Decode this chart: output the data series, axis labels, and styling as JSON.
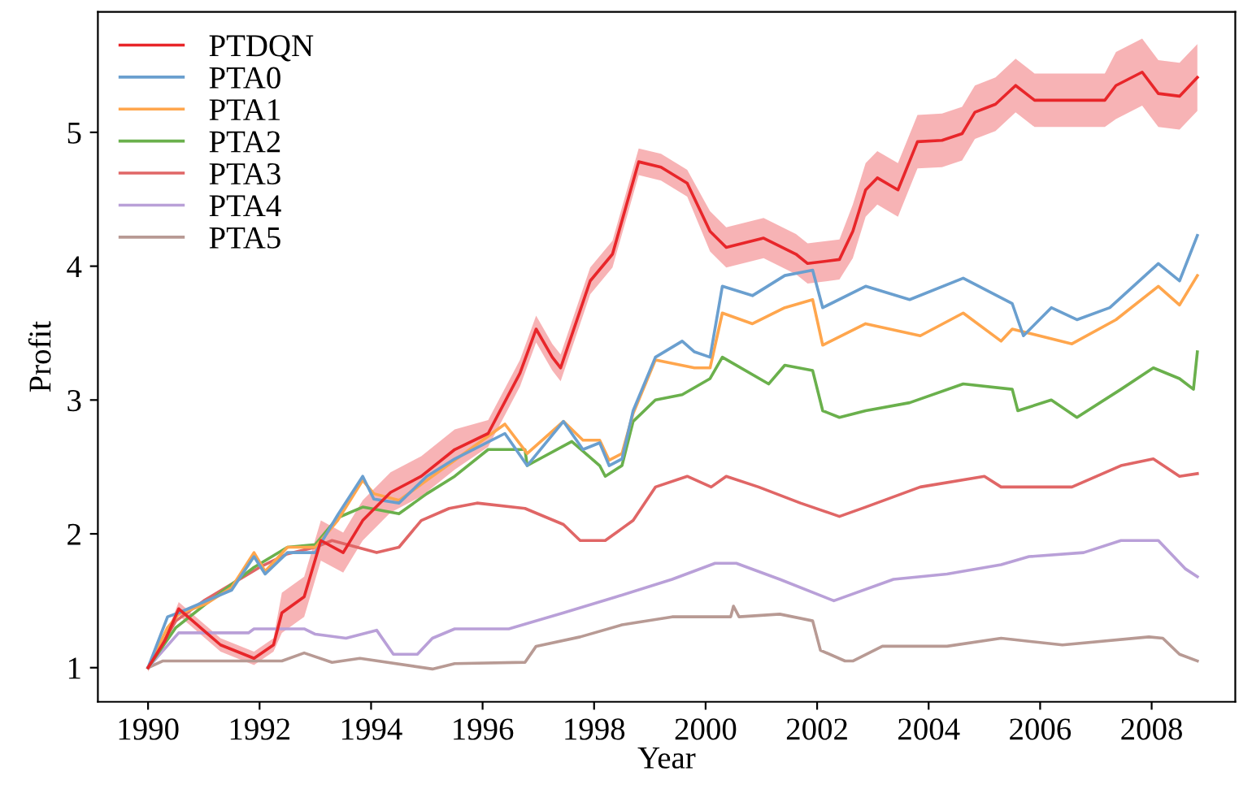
{
  "chart_data": {
    "type": "line",
    "xlabel": "Year",
    "ylabel": "Profit",
    "xlim": [
      1989.1,
      2009.5
    ],
    "ylim": [
      0.745,
      5.9
    ],
    "xticks": [
      1990,
      1992,
      1994,
      1996,
      1998,
      2000,
      2002,
      2004,
      2006,
      2008
    ],
    "yticks": [
      1,
      2,
      3,
      4,
      5
    ],
    "grid": false,
    "legend": "top left",
    "line_style": "solid",
    "marker": "none",
    "series": [
      {
        "name": "PTDQN",
        "color": "#e8262a",
        "x": [
          1990.0,
          1990.3,
          1990.55,
          1991.3,
          1991.9,
          1992.25,
          1992.4,
          1992.8,
          1993.1,
          1993.5,
          1993.85,
          1994.35,
          1994.9,
          1995.5,
          1996.1,
          1996.67,
          1996.96,
          1997.25,
          1997.4,
          1997.93,
          1998.33,
          1998.8,
          1999.2,
          1999.67,
          2000.08,
          2000.37,
          2001.04,
          2001.62,
          2001.83,
          2002.4,
          2002.64,
          2002.87,
          2003.08,
          2003.45,
          2003.8,
          2004.24,
          2004.6,
          2004.83,
          2005.2,
          2005.56,
          2005.9,
          2006.28,
          2007.16,
          2007.36,
          2007.83,
          2008.12,
          2008.5,
          2008.82
        ],
        "values": [
          1.0,
          1.2,
          1.44,
          1.17,
          1.07,
          1.17,
          1.41,
          1.53,
          1.95,
          1.86,
          2.1,
          2.31,
          2.43,
          2.63,
          2.75,
          3.2,
          3.53,
          3.32,
          3.24,
          3.89,
          4.09,
          4.78,
          4.74,
          4.62,
          4.26,
          4.14,
          4.21,
          4.09,
          4.02,
          4.05,
          4.26,
          4.57,
          4.66,
          4.57,
          4.93,
          4.94,
          4.99,
          5.15,
          5.21,
          5.35,
          5.24,
          5.24,
          5.24,
          5.35,
          5.45,
          5.29,
          5.27,
          5.41
        ],
        "lower": [
          0.97,
          1.17,
          1.39,
          1.12,
          1.02,
          1.12,
          1.26,
          1.38,
          1.8,
          1.71,
          1.95,
          2.16,
          2.28,
          2.48,
          2.65,
          3.1,
          3.43,
          3.22,
          3.14,
          3.79,
          3.99,
          4.68,
          4.64,
          4.52,
          4.11,
          3.99,
          4.06,
          3.94,
          3.87,
          3.9,
          4.06,
          4.37,
          4.46,
          4.37,
          4.73,
          4.74,
          4.79,
          4.95,
          5.01,
          5.15,
          5.04,
          5.04,
          5.04,
          5.1,
          5.2,
          5.04,
          5.02,
          5.16
        ],
        "upper": [
          1.03,
          1.23,
          1.49,
          1.22,
          1.12,
          1.22,
          1.56,
          1.68,
          2.1,
          2.01,
          2.25,
          2.46,
          2.58,
          2.78,
          2.85,
          3.3,
          3.63,
          3.42,
          3.34,
          3.99,
          4.19,
          4.88,
          4.84,
          4.72,
          4.41,
          4.29,
          4.36,
          4.24,
          4.17,
          4.2,
          4.46,
          4.77,
          4.86,
          4.77,
          5.13,
          5.14,
          5.19,
          5.35,
          5.41,
          5.55,
          5.44,
          5.44,
          5.44,
          5.6,
          5.7,
          5.54,
          5.52,
          5.66
        ]
      },
      {
        "name": "PTA0",
        "color": "#6a9fcf",
        "x": [
          1990.0,
          1990.35,
          1990.55,
          1991.05,
          1991.5,
          1991.9,
          1992.1,
          1992.5,
          1993.0,
          1993.4,
          1993.85,
          1994.05,
          1994.5,
          1995.0,
          1995.5,
          1996.4,
          1996.8,
          1997.45,
          1997.8,
          1998.1,
          1998.27,
          1998.5,
          1998.7,
          1999.1,
          1999.58,
          1999.8,
          2000.08,
          2000.3,
          2000.84,
          2001.42,
          2001.92,
          2002.1,
          2002.87,
          2003.66,
          2004.62,
          2005.5,
          2005.7,
          2006.2,
          2006.66,
          2007.25,
          2008.12,
          2008.5,
          2008.82
        ],
        "values": [
          1.0,
          1.38,
          1.41,
          1.5,
          1.58,
          1.83,
          1.7,
          1.86,
          1.86,
          2.14,
          2.43,
          2.26,
          2.23,
          2.43,
          2.56,
          2.75,
          2.51,
          2.84,
          2.63,
          2.68,
          2.51,
          2.56,
          2.92,
          3.32,
          3.44,
          3.36,
          3.32,
          3.85,
          3.78,
          3.93,
          3.97,
          3.69,
          3.85,
          3.75,
          3.91,
          3.72,
          3.48,
          3.69,
          3.6,
          3.69,
          4.02,
          3.89,
          4.23
        ]
      },
      {
        "name": "PTA1",
        "color": "#ffa64d",
        "x": [
          1990.0,
          1990.35,
          1990.55,
          1991.05,
          1991.5,
          1991.9,
          1992.1,
          1992.5,
          1993.0,
          1993.4,
          1993.85,
          1994.05,
          1994.5,
          1995.0,
          1995.5,
          1996.4,
          1996.8,
          1997.45,
          1997.8,
          1998.1,
          1998.27,
          1998.5,
          1998.7,
          1999.1,
          1999.8,
          2000.08,
          2000.3,
          2000.84,
          2001.42,
          2001.92,
          2002.1,
          2002.87,
          2003.85,
          2004.62,
          2005.3,
          2005.5,
          2006.57,
          2007.36,
          2008.12,
          2008.5,
          2008.82
        ],
        "values": [
          1.0,
          1.3,
          1.4,
          1.48,
          1.6,
          1.86,
          1.72,
          1.9,
          1.9,
          2.1,
          2.4,
          2.3,
          2.25,
          2.4,
          2.55,
          2.82,
          2.6,
          2.84,
          2.7,
          2.7,
          2.55,
          2.6,
          2.9,
          3.3,
          3.24,
          3.24,
          3.65,
          3.57,
          3.69,
          3.75,
          3.41,
          3.57,
          3.48,
          3.65,
          3.44,
          3.53,
          3.42,
          3.6,
          3.85,
          3.71,
          3.93
        ]
      },
      {
        "name": "PTA2",
        "color": "#6ab04c",
        "x": [
          1990.0,
          1990.5,
          1991.05,
          1991.9,
          1992.5,
          1993.0,
          1993.4,
          1993.85,
          1994.5,
          1995.0,
          1995.5,
          1996.1,
          1996.76,
          1996.8,
          1997.6,
          1998.1,
          1998.2,
          1998.5,
          1998.7,
          1999.1,
          1999.58,
          2000.08,
          2000.3,
          2001.13,
          2001.42,
          2001.92,
          2002.1,
          2002.4,
          2002.87,
          2003.66,
          2004.62,
          2005.5,
          2005.6,
          2006.2,
          2006.66,
          2007.45,
          2008.03,
          2008.5,
          2008.75,
          2008.82
        ],
        "values": [
          1.0,
          1.3,
          1.48,
          1.75,
          1.9,
          1.92,
          2.12,
          2.2,
          2.15,
          2.3,
          2.43,
          2.63,
          2.63,
          2.51,
          2.69,
          2.51,
          2.43,
          2.51,
          2.84,
          3.0,
          3.04,
          3.16,
          3.32,
          3.12,
          3.26,
          3.22,
          2.92,
          2.87,
          2.92,
          2.98,
          3.12,
          3.08,
          2.92,
          3.0,
          2.87,
          3.08,
          3.24,
          3.16,
          3.08,
          3.36
        ]
      },
      {
        "name": "PTA3",
        "color": "#e06666",
        "x": [
          1990.0,
          1990.5,
          1991.0,
          1992.0,
          1992.5,
          1993.0,
          1993.3,
          1994.1,
          1994.5,
          1994.9,
          1995.4,
          1995.9,
          1996.76,
          1997.45,
          1997.75,
          1998.2,
          1998.7,
          1999.1,
          1999.67,
          2000.1,
          2000.37,
          2000.95,
          2001.7,
          2002.4,
          2002.87,
          2003.85,
          2005.0,
          2005.3,
          2006.57,
          2007.45,
          2008.03,
          2008.5,
          2008.82
        ],
        "values": [
          1.0,
          1.35,
          1.5,
          1.75,
          1.85,
          1.9,
          1.95,
          1.86,
          1.9,
          2.1,
          2.19,
          2.23,
          2.19,
          2.07,
          1.95,
          1.95,
          2.1,
          2.35,
          2.43,
          2.35,
          2.43,
          2.35,
          2.23,
          2.13,
          2.2,
          2.35,
          2.43,
          2.35,
          2.35,
          2.51,
          2.56,
          2.43,
          2.45
        ]
      },
      {
        "name": "PTA4",
        "color": "#b9a0d8",
        "x": [
          1990.0,
          1990.55,
          1991.8,
          1991.9,
          1992.8,
          1993.0,
          1993.55,
          1994.1,
          1994.4,
          1994.83,
          1995.1,
          1995.5,
          1996.47,
          1997.45,
          1998.4,
          1999.4,
          2000.17,
          2000.55,
          2001.33,
          2002.3,
          2003.37,
          2004.33,
          2005.3,
          2005.8,
          2006.78,
          2007.45,
          2008.12,
          2008.6,
          2008.82
        ],
        "values": [
          1.0,
          1.26,
          1.26,
          1.29,
          1.29,
          1.25,
          1.22,
          1.28,
          1.1,
          1.1,
          1.22,
          1.29,
          1.29,
          1.41,
          1.53,
          1.66,
          1.78,
          1.78,
          1.66,
          1.5,
          1.66,
          1.7,
          1.77,
          1.83,
          1.86,
          1.95,
          1.95,
          1.74,
          1.68
        ]
      },
      {
        "name": "PTA5",
        "color": "#b89a94",
        "x": [
          1990.0,
          1990.26,
          1992.4,
          1992.8,
          1993.3,
          1993.8,
          1995.1,
          1995.5,
          1996.76,
          1996.96,
          1997.75,
          1998.5,
          1999.4,
          2000.45,
          2000.5,
          2000.6,
          2001.33,
          2001.92,
          2002.06,
          2002.5,
          2002.64,
          2003.17,
          2004.33,
          2005.3,
          2006.4,
          2007.95,
          2008.2,
          2008.5,
          2008.82
        ],
        "values": [
          1.0,
          1.05,
          1.05,
          1.11,
          1.04,
          1.07,
          0.99,
          1.03,
          1.04,
          1.16,
          1.23,
          1.32,
          1.38,
          1.38,
          1.46,
          1.38,
          1.4,
          1.35,
          1.13,
          1.05,
          1.05,
          1.16,
          1.16,
          1.22,
          1.17,
          1.23,
          1.22,
          1.1,
          1.05
        ]
      }
    ]
  }
}
